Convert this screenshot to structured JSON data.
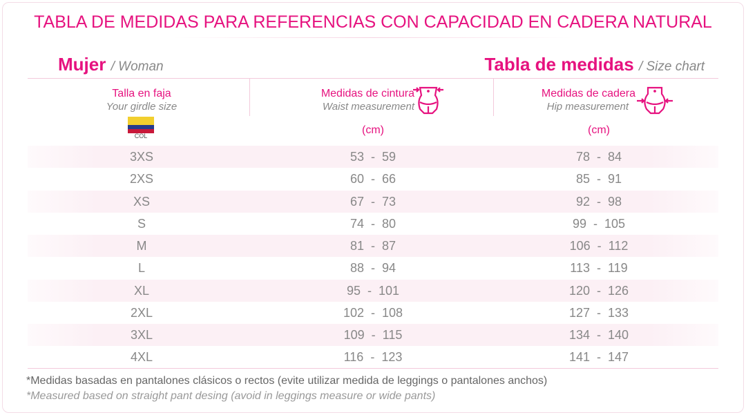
{
  "title": "TABLA DE MEDIDAS PARA REFERENCIAS CON CAPACIDAD EN CADERA NATURAL",
  "left_heading": {
    "es": "Mujer",
    "en": "/ Woman"
  },
  "right_heading": {
    "es": "Tabla de medidas",
    "en": "/ Size chart"
  },
  "columns": [
    {
      "es": "Talla en faja",
      "en": "Your girdle size"
    },
    {
      "es": "Medidas de cintura",
      "en": "Waist measurement",
      "unit": "(cm)",
      "icon": "waist-measure-icon"
    },
    {
      "es": "Medidas de cadera",
      "en": "Hip measurement",
      "unit": "(cm)",
      "icon": "hip-measure-icon"
    }
  ],
  "flag_label": "COL",
  "flag_colors": [
    "#f2cf2e",
    "#253b8c",
    "#c8193a"
  ],
  "rows": [
    {
      "size": "3XS",
      "waist": "53  -  59",
      "hip": "78  -  84"
    },
    {
      "size": "2XS",
      "waist": "60  -  66",
      "hip": "85  -  91"
    },
    {
      "size": "XS",
      "waist": "67  -  73",
      "hip": "92  -  98"
    },
    {
      "size": "S",
      "waist": "74  -  80",
      "hip": "99  -  105"
    },
    {
      "size": "M",
      "waist": "81  -  87",
      "hip": "106  -  112"
    },
    {
      "size": "L",
      "waist": "88  -  94",
      "hip": "113  -  119"
    },
    {
      "size": "XL",
      "waist": "95  -  101",
      "hip": "120  -  126"
    },
    {
      "size": "2XL",
      "waist": "102  -  108",
      "hip": "127  -  133"
    },
    {
      "size": "3XL",
      "waist": "109  -  115",
      "hip": "134  -  140"
    },
    {
      "size": "4XL",
      "waist": "116  -  123",
      "hip": "141  -  147"
    }
  ],
  "notes": {
    "es": "*Medidas basadas en pantalones clásicos o rectos (evite utilizar medida de leggings o pantalones anchos)",
    "en": "*Measured based on straight pant desing (avoid in leggings measure or wide pants)"
  },
  "accent": "#e6127f"
}
